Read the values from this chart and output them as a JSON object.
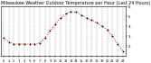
{
  "title": "Milwaukee Weather Outdoor Temperature per Hour (Last 24 Hours)",
  "hours": [
    0,
    1,
    2,
    3,
    4,
    5,
    6,
    7,
    8,
    9,
    10,
    11,
    12,
    13,
    14,
    15,
    16,
    17,
    18,
    19,
    20,
    21,
    22,
    23
  ],
  "temps": [
    28,
    24,
    22,
    22,
    22,
    22,
    22,
    23,
    28,
    35,
    42,
    48,
    52,
    54,
    54,
    51,
    48,
    46,
    43,
    40,
    36,
    30,
    22,
    15
  ],
  "line_color": "#dd0000",
  "bg_color": "#ffffff",
  "plot_bg": "#ffffff",
  "grid_color": "#888888",
  "ylim_min": 10,
  "ylim_max": 60,
  "ytick_values": [
    20,
    30,
    40,
    50,
    60
  ],
  "ytick_labels": [
    "2.",
    "3.",
    "4.",
    "5.",
    "6."
  ],
  "title_fontsize": 3.5,
  "tick_fontsize": 2.8,
  "line_width": 0.7,
  "marker_size": 1.0
}
